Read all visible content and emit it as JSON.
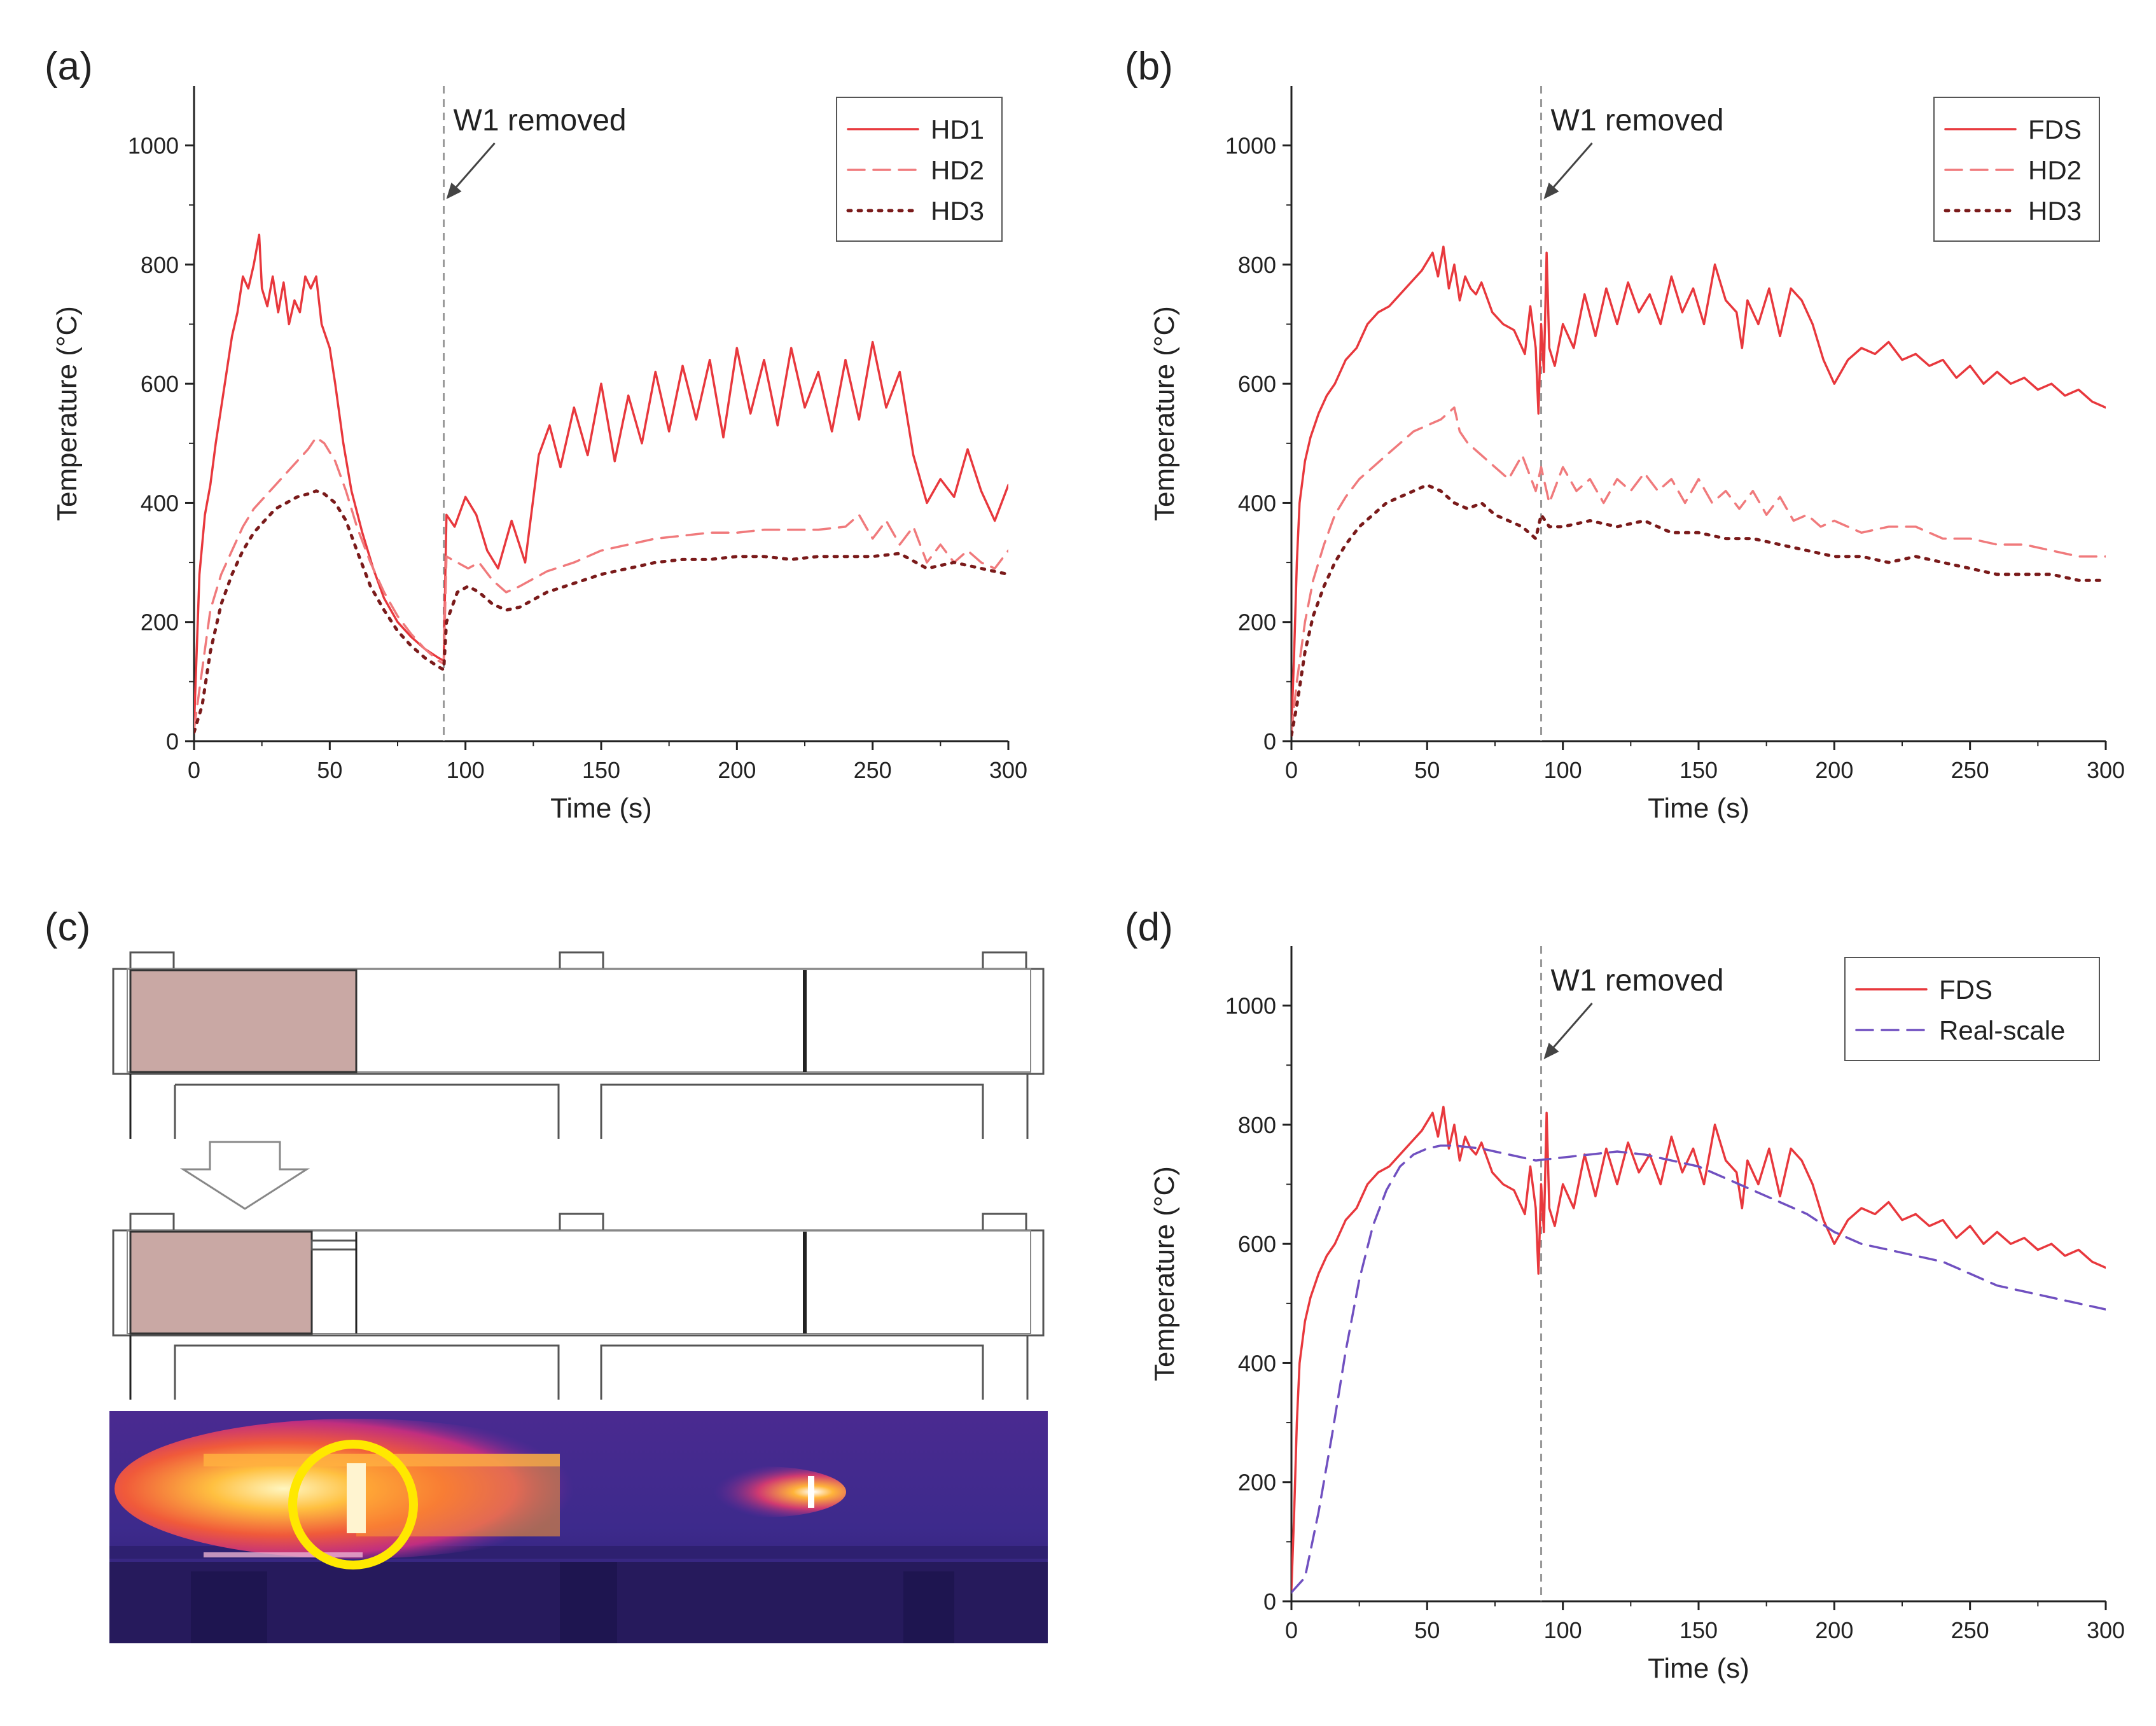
{
  "figure": {
    "panel_tags": [
      "(a)",
      "(b)",
      "(c)",
      "(d)"
    ]
  },
  "chart_data": [
    {
      "panel": "(a)",
      "type": "line",
      "xlabel": "Time (s)",
      "ylabel": "Temperature (°C)",
      "xlim": [
        0,
        300
      ],
      "ylim": [
        0,
        1100
      ],
      "xticks": [
        0,
        50,
        100,
        150,
        200,
        250,
        300
      ],
      "yticks": [
        0,
        200,
        400,
        600,
        800,
        1000
      ],
      "legend_position": "top-right",
      "annotation": {
        "text": "W1 removed",
        "x": 92
      },
      "series": [
        {
          "name": "HD1",
          "style": "solid",
          "color": "#e8383d",
          "x": [
            0,
            2,
            4,
            6,
            8,
            10,
            12,
            14,
            16,
            18,
            20,
            22,
            24,
            25,
            27,
            29,
            31,
            33,
            35,
            37,
            39,
            41,
            43,
            45,
            47,
            50,
            52,
            55,
            58,
            62,
            66,
            70,
            75,
            80,
            85,
            90,
            92,
            93,
            96,
            100,
            104,
            108,
            112,
            117,
            122,
            127,
            131,
            135,
            140,
            145,
            150,
            155,
            160,
            165,
            170,
            175,
            180,
            185,
            190,
            195,
            200,
            205,
            210,
            215,
            220,
            225,
            230,
            235,
            240,
            245,
            250,
            255,
            260,
            265,
            270,
            275,
            280,
            285,
            290,
            295,
            300
          ],
          "y": [
            25,
            280,
            380,
            430,
            500,
            560,
            620,
            680,
            720,
            780,
            760,
            800,
            850,
            760,
            730,
            780,
            720,
            770,
            700,
            740,
            720,
            780,
            760,
            780,
            700,
            660,
            600,
            500,
            420,
            350,
            290,
            240,
            200,
            175,
            155,
            140,
            135,
            380,
            360,
            410,
            380,
            320,
            290,
            370,
            300,
            480,
            530,
            460,
            560,
            480,
            600,
            470,
            580,
            500,
            620,
            520,
            630,
            540,
            640,
            510,
            660,
            550,
            640,
            530,
            660,
            560,
            620,
            520,
            640,
            540,
            670,
            560,
            620,
            480,
            400,
            440,
            410,
            490,
            420,
            370,
            430
          ]
        },
        {
          "name": "HD2",
          "style": "dashed",
          "color": "#f07a7c",
          "x": [
            0,
            3,
            6,
            10,
            14,
            18,
            22,
            26,
            30,
            34,
            38,
            42,
            45,
            48,
            52,
            56,
            60,
            65,
            70,
            75,
            80,
            85,
            90,
            92,
            93,
            97,
            101,
            105,
            110,
            115,
            120,
            130,
            140,
            150,
            160,
            170,
            180,
            190,
            200,
            210,
            220,
            230,
            240,
            245,
            250,
            255,
            260,
            265,
            270,
            275,
            280,
            285,
            290,
            295,
            300
          ],
          "y": [
            20,
            120,
            220,
            280,
            320,
            360,
            390,
            410,
            430,
            450,
            470,
            490,
            510,
            500,
            470,
            420,
            360,
            300,
            250,
            210,
            180,
            155,
            135,
            130,
            310,
            300,
            290,
            300,
            270,
            250,
            260,
            285,
            300,
            320,
            330,
            340,
            345,
            350,
            350,
            355,
            355,
            355,
            360,
            380,
            340,
            370,
            330,
            360,
            300,
            330,
            300,
            320,
            300,
            290,
            320
          ]
        },
        {
          "name": "HD3",
          "style": "dotted",
          "color": "#7a1a1a",
          "x": [
            0,
            3,
            6,
            10,
            14,
            18,
            22,
            26,
            30,
            34,
            38,
            42,
            45,
            48,
            52,
            56,
            60,
            65,
            70,
            75,
            80,
            85,
            90,
            92,
            93,
            97,
            101,
            105,
            110,
            115,
            120,
            130,
            140,
            150,
            160,
            170,
            180,
            190,
            200,
            210,
            220,
            230,
            240,
            250,
            260,
            270,
            280,
            290,
            300
          ],
          "y": [
            15,
            60,
            150,
            230,
            280,
            320,
            350,
            370,
            390,
            400,
            410,
            415,
            420,
            415,
            400,
            370,
            320,
            260,
            220,
            185,
            160,
            140,
            125,
            120,
            200,
            250,
            260,
            250,
            230,
            220,
            225,
            250,
            265,
            280,
            290,
            300,
            305,
            305,
            310,
            310,
            305,
            310,
            310,
            310,
            315,
            290,
            300,
            290,
            280
          ]
        }
      ]
    },
    {
      "panel": "(b)",
      "type": "line",
      "xlabel": "Time (s)",
      "ylabel": "Temperature (°C)",
      "xlim": [
        0,
        300
      ],
      "ylim": [
        0,
        1100
      ],
      "xticks": [
        0,
        50,
        100,
        150,
        200,
        250,
        300
      ],
      "yticks": [
        0,
        200,
        400,
        600,
        800,
        1000
      ],
      "legend_position": "top-right",
      "annotation": {
        "text": "W1 removed",
        "x": 92
      },
      "series": [
        {
          "name": "FDS",
          "style": "solid",
          "color": "#e8383d",
          "x": [
            0,
            1,
            2,
            3,
            5,
            7,
            10,
            13,
            16,
            20,
            24,
            28,
            32,
            36,
            40,
            44,
            48,
            52,
            54,
            56,
            58,
            60,
            62,
            64,
            66,
            68,
            70,
            74,
            78,
            82,
            86,
            88,
            90,
            91,
            92,
            93,
            94,
            95,
            97,
            100,
            104,
            108,
            112,
            116,
            120,
            124,
            128,
            132,
            136,
            140,
            144,
            148,
            152,
            156,
            160,
            164,
            166,
            168,
            172,
            176,
            180,
            184,
            188,
            192,
            196,
            200,
            205,
            210,
            215,
            220,
            225,
            230,
            235,
            240,
            245,
            250,
            255,
            260,
            265,
            270,
            275,
            280,
            285,
            290,
            295,
            300
          ],
          "y": [
            20,
            150,
            300,
            400,
            470,
            510,
            550,
            580,
            600,
            640,
            660,
            700,
            720,
            730,
            750,
            770,
            790,
            820,
            780,
            830,
            760,
            800,
            740,
            780,
            760,
            750,
            770,
            720,
            700,
            690,
            650,
            730,
            660,
            550,
            700,
            620,
            820,
            660,
            630,
            700,
            660,
            750,
            680,
            760,
            700,
            770,
            720,
            750,
            700,
            780,
            720,
            760,
            700,
            800,
            740,
            720,
            660,
            740,
            700,
            760,
            680,
            760,
            740,
            700,
            640,
            600,
            640,
            660,
            650,
            670,
            640,
            650,
            630,
            640,
            610,
            630,
            600,
            620,
            600,
            610,
            590,
            600,
            580,
            590,
            570,
            560
          ]
        },
        {
          "name": "HD2",
          "style": "dashed",
          "color": "#f07a7c",
          "x": [
            0,
            2,
            5,
            8,
            12,
            16,
            20,
            25,
            30,
            35,
            40,
            45,
            50,
            55,
            60,
            62,
            65,
            70,
            75,
            80,
            85,
            90,
            92,
            95,
            100,
            105,
            110,
            115,
            120,
            125,
            130,
            135,
            140,
            145,
            150,
            155,
            160,
            165,
            170,
            175,
            180,
            185,
            190,
            195,
            200,
            210,
            220,
            230,
            240,
            250,
            260,
            270,
            280,
            290,
            300
          ],
          "y": [
            15,
            100,
            200,
            270,
            330,
            380,
            410,
            440,
            460,
            480,
            500,
            520,
            530,
            540,
            560,
            520,
            500,
            480,
            460,
            440,
            480,
            420,
            460,
            400,
            460,
            420,
            440,
            400,
            440,
            420,
            450,
            420,
            440,
            400,
            440,
            400,
            420,
            390,
            420,
            380,
            410,
            370,
            380,
            360,
            370,
            350,
            360,
            360,
            340,
            340,
            330,
            330,
            320,
            310,
            310
          ]
        },
        {
          "name": "HD3",
          "style": "dotted",
          "color": "#7a1a1a",
          "x": [
            0,
            2,
            5,
            8,
            12,
            16,
            20,
            25,
            30,
            35,
            40,
            45,
            50,
            55,
            60,
            65,
            70,
            75,
            80,
            85,
            90,
            92,
            95,
            100,
            110,
            120,
            130,
            140,
            150,
            160,
            170,
            180,
            190,
            200,
            210,
            220,
            230,
            240,
            250,
            260,
            270,
            280,
            290,
            300
          ],
          "y": [
            10,
            60,
            150,
            210,
            260,
            300,
            330,
            360,
            380,
            400,
            410,
            420,
            430,
            420,
            400,
            390,
            400,
            380,
            370,
            360,
            340,
            380,
            360,
            360,
            370,
            360,
            370,
            350,
            350,
            340,
            340,
            330,
            320,
            310,
            310,
            300,
            310,
            300,
            290,
            280,
            280,
            280,
            270,
            270
          ]
        }
      ]
    },
    {
      "panel": "(d)",
      "type": "line",
      "xlabel": "Time (s)",
      "ylabel": "Temperature (°C)",
      "xlim": [
        0,
        300
      ],
      "ylim": [
        0,
        1100
      ],
      "xticks": [
        0,
        50,
        100,
        150,
        200,
        250,
        300
      ],
      "yticks": [
        0,
        200,
        400,
        600,
        800,
        1000
      ],
      "legend_position": "top-right",
      "annotation": {
        "text": "W1 removed",
        "x": 92
      },
      "series": [
        {
          "name": "FDS",
          "style": "solid",
          "color": "#e8383d",
          "x": [
            0,
            1,
            2,
            3,
            5,
            7,
            10,
            13,
            16,
            20,
            24,
            28,
            32,
            36,
            40,
            44,
            48,
            52,
            54,
            56,
            58,
            60,
            62,
            64,
            66,
            68,
            70,
            74,
            78,
            82,
            86,
            88,
            90,
            91,
            92,
            93,
            94,
            95,
            97,
            100,
            104,
            108,
            112,
            116,
            120,
            124,
            128,
            132,
            136,
            140,
            144,
            148,
            152,
            156,
            160,
            164,
            166,
            168,
            172,
            176,
            180,
            184,
            188,
            192,
            196,
            200,
            205,
            210,
            215,
            220,
            225,
            230,
            235,
            240,
            245,
            250,
            255,
            260,
            265,
            270,
            275,
            280,
            285,
            290,
            295,
            300
          ],
          "y": [
            20,
            150,
            300,
            400,
            470,
            510,
            550,
            580,
            600,
            640,
            660,
            700,
            720,
            730,
            750,
            770,
            790,
            820,
            780,
            830,
            760,
            800,
            740,
            780,
            760,
            750,
            770,
            720,
            700,
            690,
            650,
            730,
            660,
            550,
            700,
            620,
            820,
            660,
            630,
            700,
            660,
            750,
            680,
            760,
            700,
            770,
            720,
            750,
            700,
            780,
            720,
            760,
            700,
            800,
            740,
            720,
            660,
            740,
            700,
            760,
            680,
            760,
            740,
            700,
            640,
            600,
            640,
            660,
            650,
            670,
            640,
            650,
            630,
            640,
            610,
            630,
            600,
            620,
            600,
            610,
            590,
            600,
            580,
            590,
            570,
            560
          ]
        },
        {
          "name": "Real-scale",
          "style": "dashed",
          "color": "#7050c0",
          "x": [
            0,
            5,
            10,
            15,
            20,
            25,
            30,
            35,
            40,
            45,
            50,
            55,
            60,
            70,
            80,
            90,
            100,
            110,
            120,
            130,
            140,
            150,
            160,
            170,
            180,
            190,
            200,
            210,
            220,
            230,
            240,
            250,
            260,
            270,
            280,
            290,
            300
          ],
          "y": [
            15,
            40,
            150,
            280,
            420,
            540,
            630,
            690,
            730,
            750,
            760,
            765,
            765,
            760,
            750,
            740,
            745,
            750,
            755,
            750,
            740,
            730,
            710,
            690,
            670,
            650,
            620,
            600,
            590,
            580,
            570,
            550,
            530,
            520,
            510,
            500,
            490
          ]
        }
      ]
    }
  ],
  "diagram_c": {
    "colors": {
      "fuel_block": "#c9a8a4",
      "outline": "#555555",
      "thermal_bg": "#3a2a8a",
      "ring": "#ffe800"
    }
  }
}
